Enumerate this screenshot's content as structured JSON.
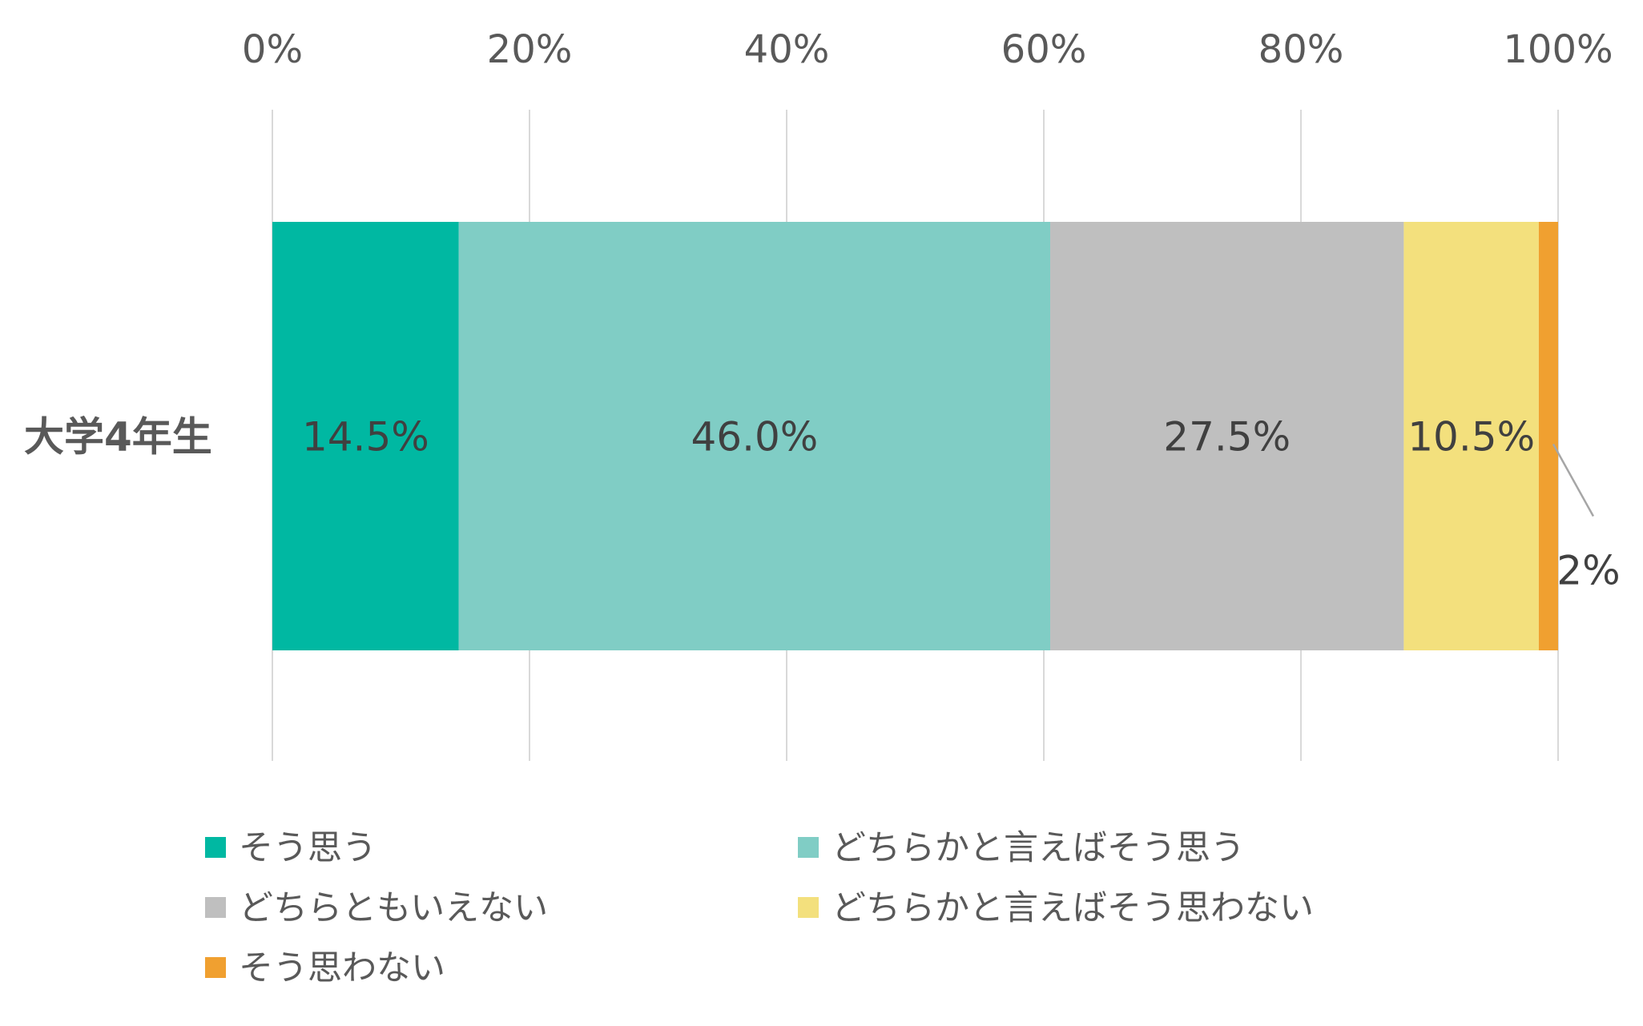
{
  "chart_data": {
    "type": "bar",
    "orientation": "horizontal",
    "stacked": "percent",
    "xlim": [
      0,
      100
    ],
    "x_ticks": [
      0,
      20,
      40,
      60,
      80,
      100
    ],
    "x_tick_labels": [
      "0%",
      "20%",
      "40%",
      "60%",
      "80%",
      "100%"
    ],
    "x_axis_position": "top",
    "grid": "vertical",
    "categories": [
      "大学4年生"
    ],
    "series": [
      {
        "name": "そう思う",
        "values": [
          14.5
        ],
        "label": "14.5%",
        "color": "#00B8A2"
      },
      {
        "name": "どちらかと言えばそう思う",
        "values": [
          46.0
        ],
        "label": "46.0%",
        "color": "#80CDC5"
      },
      {
        "name": "どちらともいえない",
        "values": [
          27.5
        ],
        "label": "27.5%",
        "color": "#BFBFBF"
      },
      {
        "name": "どちらかと言えばそう思わない",
        "values": [
          10.5
        ],
        "label": "10.5%",
        "color": "#F3E07D"
      },
      {
        "name": "そう思わない",
        "values": [
          1.5
        ],
        "label": "2%",
        "color": "#F0A030"
      }
    ],
    "legend_position": "bottom",
    "gridline_color": "#D9D9D9",
    "leader_line_color": "#A6A6A6"
  }
}
